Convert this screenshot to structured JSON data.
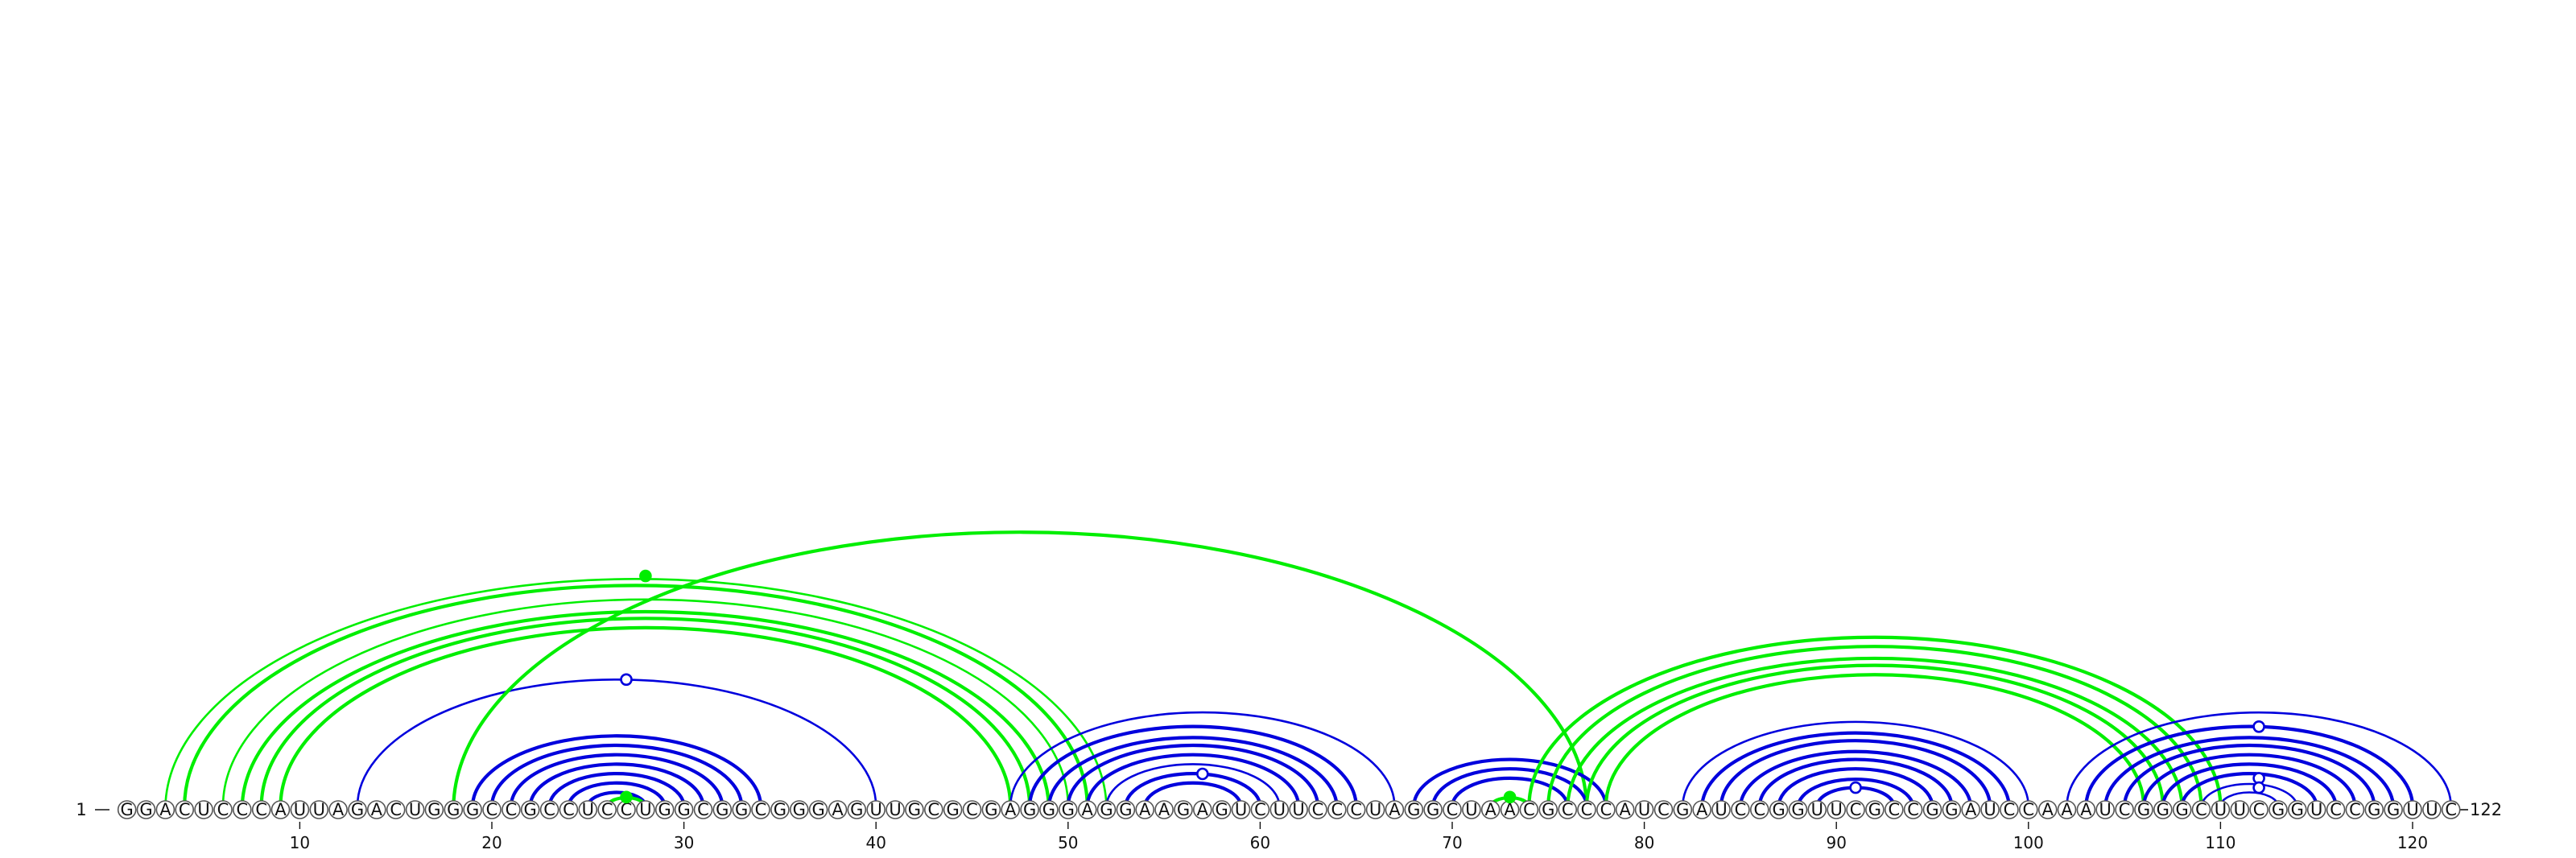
{
  "sequence": "GGACUCCCAUUAGACUGGGCCGCCUCCUGGCGGCGGGAGUUGCGCGAGGGAGGAAGAGUCUUCCCUAGGCUAACGCCCAUCGAUCCGGUUCGCCGGAUCCAAAUCGGGCUUCGGUCCGGUUC",
  "start_label": "1",
  "end_label": "122",
  "ticks": [
    10,
    20,
    30,
    40,
    50,
    60,
    70,
    80,
    90,
    100,
    110,
    120
  ],
  "colors": {
    "blue": "#0000dd",
    "green": "#00ee00"
  },
  "arc_groups": [
    {
      "color": "green",
      "stroke": "thin",
      "outer": [
        3,
        52
      ],
      "count": 1
    },
    {
      "color": "green",
      "stroke": "thick",
      "outer": [
        4,
        51
      ],
      "count": 1
    },
    {
      "color": "green",
      "stroke": "thin",
      "outer": [
        6,
        50
      ],
      "count": 1
    },
    {
      "color": "green",
      "stroke": "thick",
      "outer": [
        7,
        49
      ],
      "count": 3
    },
    {
      "color": "blue",
      "stroke": "thin",
      "outer": [
        13,
        40
      ],
      "count": 1
    },
    {
      "color": "green",
      "stroke": "thick",
      "outer": [
        18,
        77
      ],
      "count": 1
    },
    {
      "color": "blue",
      "stroke": "thick",
      "outer": [
        19,
        34
      ],
      "count": 7
    },
    {
      "color": "green",
      "stroke": "thick",
      "outer": [
        26,
        28
      ],
      "count": 1
    },
    {
      "color": "blue",
      "stroke": "thin",
      "outer": [
        47,
        67
      ],
      "count": 1
    },
    {
      "color": "blue",
      "stroke": "thick",
      "outer": [
        48,
        65
      ],
      "count": 4
    },
    {
      "color": "blue",
      "stroke": "thin",
      "outer": [
        52,
        61
      ],
      "count": 1
    },
    {
      "color": "blue",
      "stroke": "thick",
      "outer": [
        53,
        60
      ],
      "count": 2
    },
    {
      "color": "blue",
      "stroke": "thick",
      "outer": [
        68,
        78
      ],
      "count": 3
    },
    {
      "color": "green",
      "stroke": "thick",
      "outer": [
        72,
        74
      ],
      "count": 1
    },
    {
      "color": "green",
      "stroke": "thick",
      "outer": [
        74,
        110
      ],
      "count": 5
    },
    {
      "color": "blue",
      "stroke": "thin",
      "outer": [
        82,
        100
      ],
      "count": 1
    },
    {
      "color": "blue",
      "stroke": "thick",
      "outer": [
        83,
        99
      ],
      "count": 7
    },
    {
      "color": "blue",
      "stroke": "thin",
      "outer": [
        89,
        93
      ],
      "count": 1
    },
    {
      "color": "blue",
      "stroke": "thin",
      "outer": [
        102,
        122
      ],
      "count": 1
    },
    {
      "color": "blue",
      "stroke": "thick",
      "outer": [
        103,
        120
      ],
      "count": 6
    },
    {
      "color": "blue",
      "stroke": "thin",
      "outer": [
        108,
        115
      ],
      "count": 3
    }
  ],
  "markers": [
    {
      "position": 28,
      "arc_span": [
        3,
        52
      ],
      "style": "filled",
      "color": "green"
    },
    {
      "position": 27,
      "arc_span": [
        13,
        40
      ],
      "style": "open",
      "color": "blue"
    },
    {
      "position": 27,
      "arc_span": [
        26,
        28
      ],
      "style": "filled",
      "color": "green"
    },
    {
      "position": 57,
      "arc_span": [
        53,
        60
      ],
      "style": "open",
      "color": "blue"
    },
    {
      "position": 73,
      "arc_span": [
        72,
        74
      ],
      "style": "filled",
      "color": "green"
    },
    {
      "position": 91,
      "arc_span": [
        89,
        93
      ],
      "style": "open",
      "color": "blue"
    },
    {
      "position": 112,
      "arc_span": [
        103,
        120
      ],
      "style": "open",
      "color": "blue"
    },
    {
      "position": 112,
      "arc_span": [
        109,
        115
      ],
      "style": "open",
      "color": "blue"
    },
    {
      "position": 112,
      "arc_span": [
        110,
        114
      ],
      "style": "open",
      "color": "blue"
    }
  ]
}
